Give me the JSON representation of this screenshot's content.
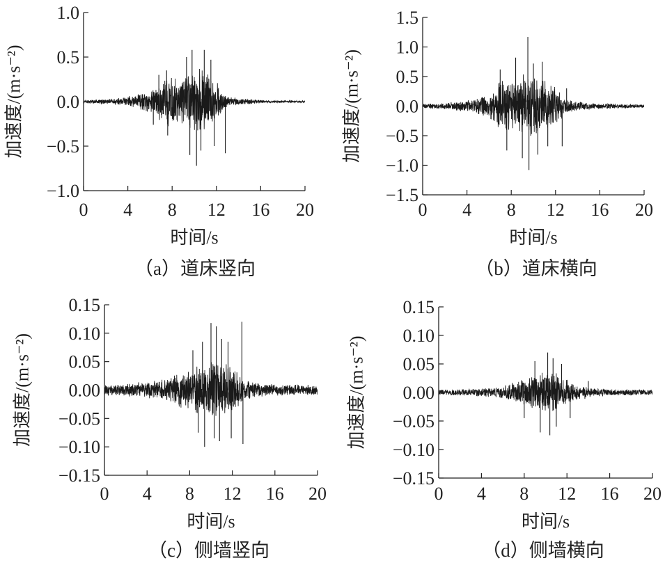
{
  "colors": {
    "signal": "#1a1a1a",
    "axis": "#222222",
    "background": "#ffffff"
  },
  "chart_data": [
    {
      "type": "line",
      "id": "a",
      "caption": "（a）道床竖向",
      "xlabel": "时间/s",
      "ylabel": "加速度/(m·s⁻²)",
      "xlim": [
        0,
        20
      ],
      "ylim": [
        -1.0,
        1.0
      ],
      "xticks": [
        0,
        4,
        8,
        12,
        16,
        20
      ],
      "xtick_labels": [
        "0",
        "4",
        "8",
        "12",
        "16",
        "20"
      ],
      "yticks": [
        -1.0,
        -0.5,
        0.0,
        0.5,
        1.0
      ],
      "ytick_labels": [
        "−1.0",
        "−0.5",
        "0.0",
        "0.5",
        "1.0"
      ],
      "grid": false,
      "envelope": {
        "t": [
          0,
          1,
          2,
          3,
          4,
          4.5,
          5,
          6,
          6.5,
          7,
          7.5,
          8,
          8.5,
          9,
          9.5,
          10,
          10.5,
          11,
          11.5,
          12,
          12.5,
          13,
          14,
          15,
          16,
          18,
          20
        ],
        "amplitude": [
          0.02,
          0.025,
          0.03,
          0.04,
          0.06,
          0.08,
          0.1,
          0.13,
          0.17,
          0.25,
          0.32,
          0.3,
          0.27,
          0.28,
          0.33,
          0.38,
          0.4,
          0.35,
          0.3,
          0.25,
          0.12,
          0.06,
          0.04,
          0.03,
          0.02,
          0.015,
          0.012
        ]
      },
      "peaks": [
        {
          "t": 6.3,
          "y": -0.26
        },
        {
          "t": 6.8,
          "y": 0.3
        },
        {
          "t": 7.5,
          "y": 0.35
        },
        {
          "t": 7.6,
          "y": -0.38
        },
        {
          "t": 9.3,
          "y": 0.5
        },
        {
          "t": 9.6,
          "y": -0.6
        },
        {
          "t": 9.8,
          "y": 0.58
        },
        {
          "t": 10.2,
          "y": -0.72
        },
        {
          "t": 10.6,
          "y": -0.55
        },
        {
          "t": 10.9,
          "y": 0.58
        },
        {
          "t": 11.5,
          "y": 0.47
        },
        {
          "t": 11.8,
          "y": -0.5
        },
        {
          "t": 12.8,
          "y": -0.58
        }
      ],
      "seed": 11
    },
    {
      "type": "line",
      "id": "b",
      "caption": "（b）道床横向",
      "xlabel": "时间/s",
      "ylabel": "加速度/(m·s⁻²)",
      "xlim": [
        0,
        20
      ],
      "ylim": [
        -1.5,
        1.5
      ],
      "xticks": [
        0,
        4,
        8,
        12,
        16,
        20
      ],
      "xtick_labels": [
        "0",
        "4",
        "8",
        "12",
        "16",
        "20"
      ],
      "yticks": [
        -1.5,
        -1.0,
        -0.5,
        0.0,
        0.5,
        1.0,
        1.5
      ],
      "ytick_labels": [
        "−1.5",
        "−1.0",
        "−0.5",
        "0.0",
        "0.5",
        "1.0",
        "1.5"
      ],
      "grid": false,
      "envelope": {
        "t": [
          0,
          1,
          2,
          3,
          4,
          5,
          6,
          6.5,
          7,
          7.5,
          8,
          8.5,
          9,
          9.5,
          10,
          10.5,
          11,
          11.5,
          12,
          12.5,
          13,
          14,
          15,
          16,
          18,
          20
        ],
        "amplitude": [
          0.04,
          0.05,
          0.06,
          0.08,
          0.1,
          0.15,
          0.2,
          0.3,
          0.45,
          0.5,
          0.42,
          0.45,
          0.55,
          0.6,
          0.55,
          0.5,
          0.45,
          0.4,
          0.35,
          0.25,
          0.12,
          0.08,
          0.06,
          0.05,
          0.04,
          0.03
        ]
      },
      "peaks": [
        {
          "t": 7.0,
          "y": 0.62
        },
        {
          "t": 7.6,
          "y": -0.75
        },
        {
          "t": 8.4,
          "y": 0.82
        },
        {
          "t": 9.0,
          "y": -0.88
        },
        {
          "t": 9.5,
          "y": 1.17
        },
        {
          "t": 9.6,
          "y": -1.08
        },
        {
          "t": 10.0,
          "y": 0.72
        },
        {
          "t": 10.4,
          "y": -0.82
        },
        {
          "t": 10.8,
          "y": 0.75
        },
        {
          "t": 11.3,
          "y": -0.68
        },
        {
          "t": 12.6,
          "y": -0.68
        },
        {
          "t": 13.0,
          "y": 0.3
        }
      ],
      "seed": 23
    },
    {
      "type": "line",
      "id": "c",
      "caption": "（c）侧墙竖向",
      "xlabel": "时间/s",
      "ylabel": "加速度/(m·s⁻²)",
      "xlim": [
        0,
        20
      ],
      "ylim": [
        -0.15,
        0.15
      ],
      "xticks": [
        0,
        4,
        8,
        12,
        16,
        20
      ],
      "xtick_labels": [
        "0",
        "4",
        "8",
        "12",
        "16",
        "20"
      ],
      "yticks": [
        -0.15,
        -0.1,
        -0.05,
        0.0,
        0.05,
        0.1,
        0.15
      ],
      "ytick_labels": [
        "−0.15",
        "−0.10",
        "−0.05",
        "0.00",
        "0.05",
        "0.10",
        "0.15"
      ],
      "grid": false,
      "envelope": {
        "t": [
          0,
          1,
          2,
          3,
          4,
          5,
          6,
          6.5,
          7,
          7.5,
          8,
          8.5,
          9,
          9.5,
          10,
          10.5,
          11,
          11.5,
          12,
          12.5,
          13,
          14,
          15,
          16,
          18,
          20
        ],
        "amplitude": [
          0.01,
          0.011,
          0.012,
          0.014,
          0.016,
          0.018,
          0.022,
          0.026,
          0.03,
          0.035,
          0.04,
          0.045,
          0.05,
          0.055,
          0.06,
          0.06,
          0.055,
          0.05,
          0.045,
          0.035,
          0.02,
          0.014,
          0.012,
          0.011,
          0.01,
          0.01
        ]
      },
      "peaks": [
        {
          "t": 8.3,
          "y": 0.07
        },
        {
          "t": 8.8,
          "y": -0.075
        },
        {
          "t": 9.2,
          "y": 0.085
        },
        {
          "t": 9.4,
          "y": -0.1
        },
        {
          "t": 10.0,
          "y": 0.118
        },
        {
          "t": 10.3,
          "y": -0.085
        },
        {
          "t": 10.5,
          "y": 0.112
        },
        {
          "t": 10.8,
          "y": -0.09
        },
        {
          "t": 11.0,
          "y": 0.09
        },
        {
          "t": 11.6,
          "y": 0.085
        },
        {
          "t": 11.9,
          "y": -0.085
        },
        {
          "t": 12.9,
          "y": 0.12
        },
        {
          "t": 13.0,
          "y": -0.095
        }
      ],
      "seed": 37
    },
    {
      "type": "line",
      "id": "d",
      "caption": "（d）侧墙横向",
      "xlabel": "时间/s",
      "ylabel": "加速度/(m·s⁻²)",
      "xlim": [
        0,
        20
      ],
      "ylim": [
        -0.15,
        0.15
      ],
      "xticks": [
        0,
        4,
        8,
        12,
        16,
        20
      ],
      "xtick_labels": [
        "0",
        "4",
        "8",
        "12",
        "16",
        "20"
      ],
      "yticks": [
        -0.15,
        -0.1,
        -0.05,
        0.0,
        0.05,
        0.1,
        0.15
      ],
      "ytick_labels": [
        "−0.15",
        "−0.10",
        "−0.05",
        "0.00",
        "0.05",
        "0.10",
        "0.15"
      ],
      "grid": false,
      "envelope": {
        "t": [
          0,
          2,
          4,
          5,
          6,
          7,
          7.5,
          8,
          8.5,
          9,
          9.5,
          10,
          10.5,
          11,
          11.5,
          12,
          12.5,
          13,
          14,
          15,
          16,
          18,
          20
        ],
        "amplitude": [
          0.005,
          0.006,
          0.008,
          0.01,
          0.012,
          0.018,
          0.022,
          0.026,
          0.03,
          0.032,
          0.036,
          0.04,
          0.038,
          0.035,
          0.03,
          0.025,
          0.02,
          0.015,
          0.01,
          0.008,
          0.006,
          0.006,
          0.005
        ]
      },
      "peaks": [
        {
          "t": 8.0,
          "y": -0.045
        },
        {
          "t": 9.0,
          "y": 0.055
        },
        {
          "t": 9.5,
          "y": -0.07
        },
        {
          "t": 10.2,
          "y": 0.07
        },
        {
          "t": 10.4,
          "y": -0.075
        },
        {
          "t": 10.7,
          "y": 0.06
        },
        {
          "t": 11.0,
          "y": -0.06
        },
        {
          "t": 11.5,
          "y": 0.05
        },
        {
          "t": 12.3,
          "y": -0.045
        },
        {
          "t": 14.0,
          "y": 0.02
        }
      ],
      "seed": 53
    }
  ]
}
